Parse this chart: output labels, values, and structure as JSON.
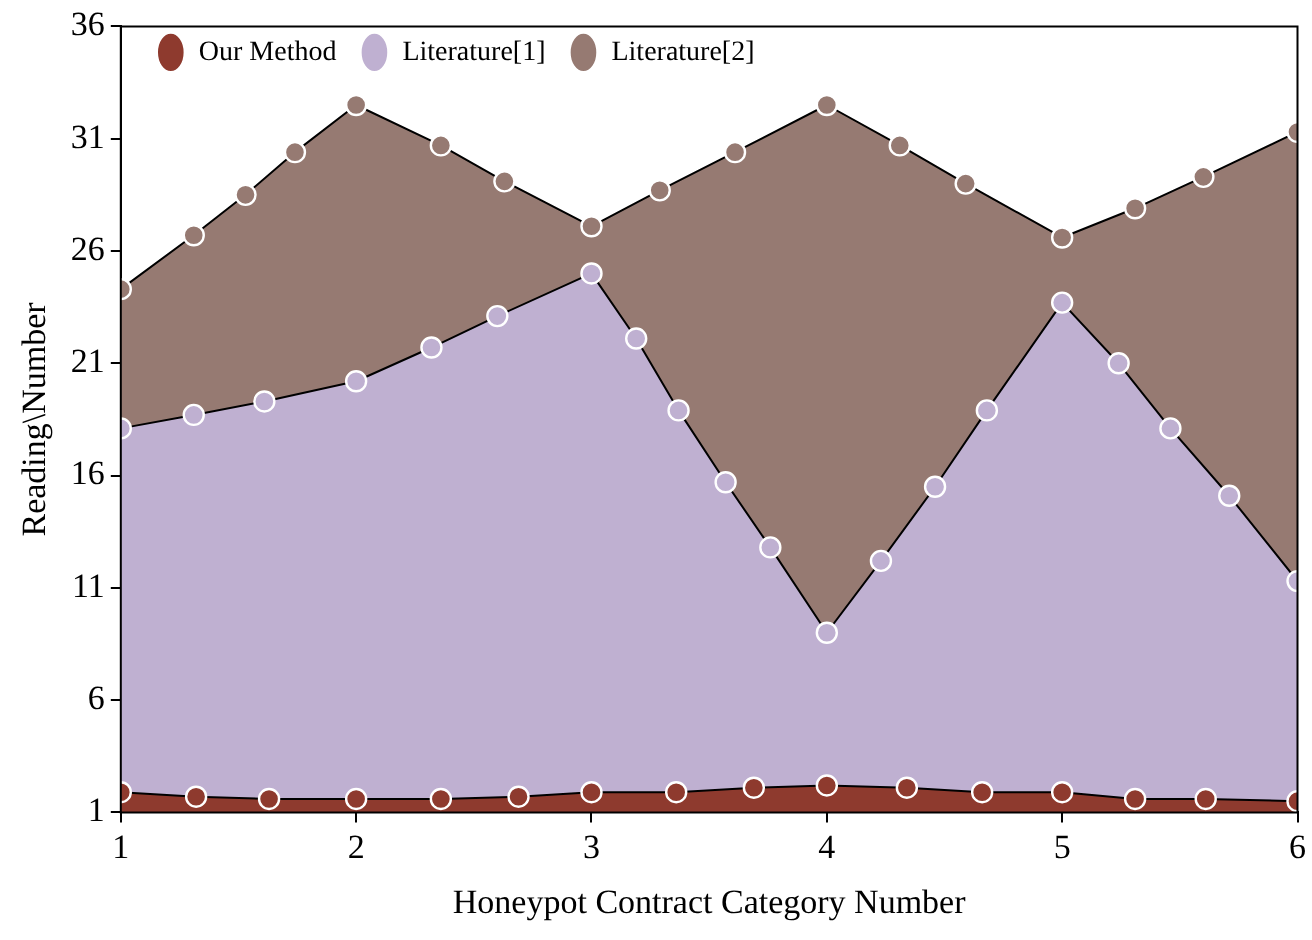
{
  "chart_data": {
    "type": "area",
    "xlabel": "Honeypot Contract Category Number",
    "ylabel": "Reading\\Number",
    "xlim": [
      1,
      6
    ],
    "xticks": [
      1,
      2,
      3,
      4,
      5,
      6
    ],
    "ylim": [
      1,
      36
    ],
    "yticks": [
      1,
      6,
      11,
      16,
      21,
      26,
      31,
      36
    ],
    "grid": false,
    "legend": "top left",
    "marker": "circle",
    "series": [
      {
        "name": "Our Method",
        "color": "#8e3a2e",
        "x": [
          1,
          1.32,
          1.63,
          2,
          2.36,
          2.69,
          3,
          3.36,
          3.69,
          4,
          4.34,
          4.66,
          5,
          5.31,
          5.61,
          6
        ],
        "values": [
          1.9,
          1.7,
          1.6,
          1.6,
          1.6,
          1.7,
          1.9,
          1.9,
          2.1,
          2.2,
          2.1,
          1.9,
          1.9,
          1.6,
          1.6,
          1.5
        ]
      },
      {
        "name": "Literature[1]",
        "color": "#bfb0d1",
        "x": [
          1,
          1.31,
          1.61,
          2,
          2.32,
          2.6,
          3,
          3.19,
          3.37,
          3.57,
          3.76,
          4,
          4.23,
          4.46,
          4.68,
          5,
          5.24,
          5.46,
          5.71,
          6
        ],
        "values": [
          18.1,
          18.7,
          19.3,
          20.2,
          21.7,
          23.1,
          25.0,
          22.1,
          18.9,
          15.7,
          12.8,
          9.0,
          12.2,
          15.5,
          18.9,
          23.7,
          21.0,
          18.1,
          15.1,
          11.3
        ]
      },
      {
        "name": "Literature[2]",
        "color": "#967a72",
        "x": [
          1,
          1.31,
          1.53,
          1.74,
          2,
          2.36,
          2.63,
          3,
          3.29,
          3.61,
          4,
          4.31,
          4.59,
          5,
          5.31,
          5.6,
          6
        ],
        "values": [
          24.3,
          26.7,
          28.5,
          30.4,
          32.5,
          30.7,
          29.1,
          27.1,
          28.7,
          30.4,
          32.5,
          30.7,
          29.0,
          26.6,
          27.9,
          29.3,
          31.3
        ]
      }
    ]
  }
}
